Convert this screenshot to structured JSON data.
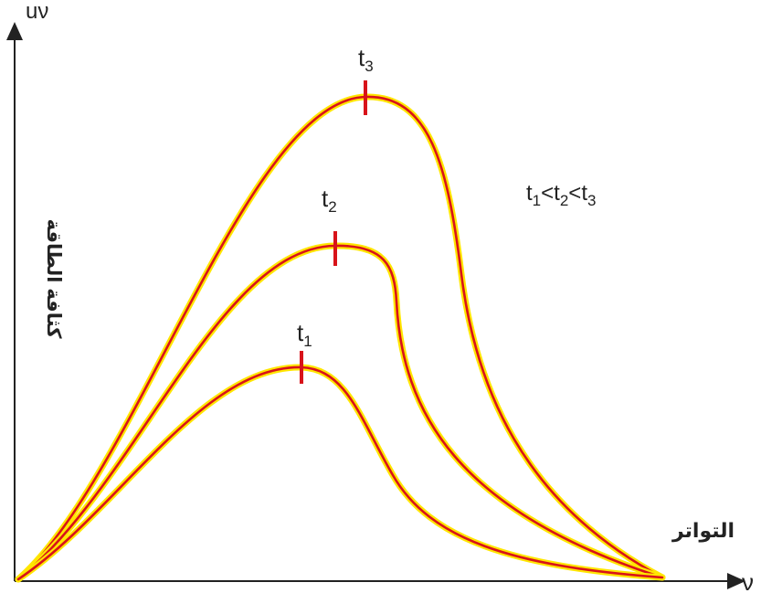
{
  "diagram": {
    "axis_x_symbol": "ν",
    "axis_y_symbol": "uν",
    "axis_x_label": "التواتر",
    "axis_y_label": "كثافة الطاقة",
    "relation": {
      "t1": "t",
      "s1": "1",
      "lt1": "<",
      "t2": "t",
      "s2": "2",
      "lt2": "<",
      "t3": "t",
      "s3": "3"
    },
    "curves": [
      {
        "id": "t1",
        "base": "t",
        "sub": "1"
      },
      {
        "id": "t2",
        "base": "t",
        "sub": "2"
      },
      {
        "id": "t3",
        "base": "t",
        "sub": "3"
      }
    ],
    "colors": {
      "curve_outer": "#ffe600",
      "curve_inner": "#d8131a",
      "axis": "#222222",
      "text": "#222222"
    }
  }
}
